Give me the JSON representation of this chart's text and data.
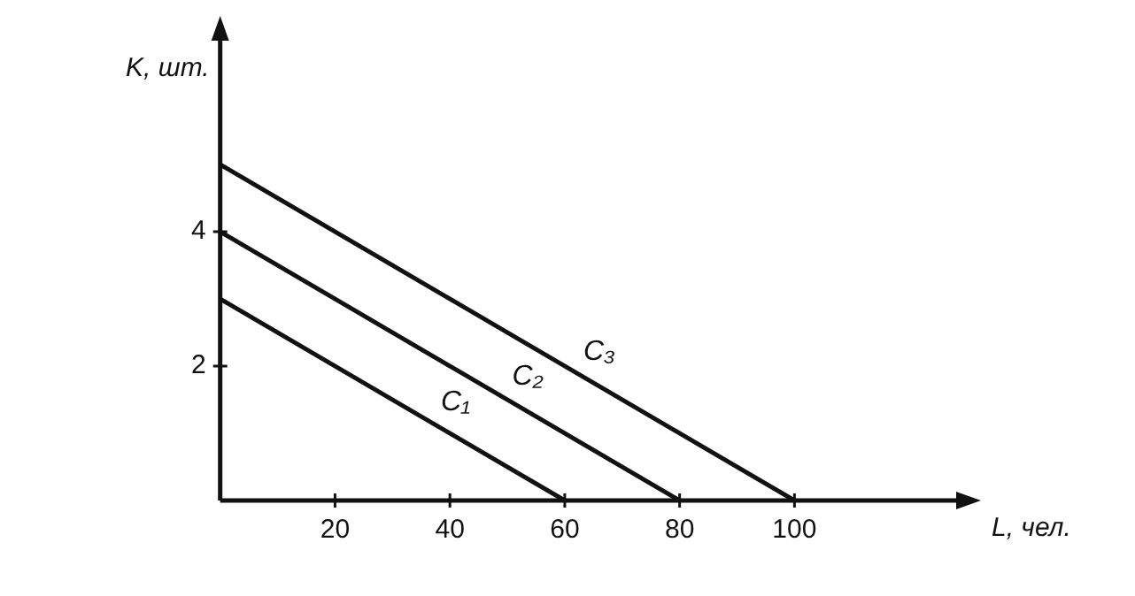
{
  "chart_data": {
    "type": "line",
    "xlabel": "L, чел.",
    "ylabel": "K, шт.",
    "xlim": [
      0,
      130
    ],
    "ylim": [
      0,
      7
    ],
    "xticks": [
      20,
      40,
      60,
      80,
      100
    ],
    "yticks": [
      2,
      4
    ],
    "grid": false,
    "legend": false,
    "marker": "none",
    "line_style": "solid",
    "series": [
      {
        "name": "C₁",
        "color": "#111111",
        "x": [
          0,
          60
        ],
        "values": [
          3,
          0
        ]
      },
      {
        "name": "C₂",
        "color": "#111111",
        "x": [
          0,
          80
        ],
        "values": [
          4,
          0
        ]
      },
      {
        "name": "C₃",
        "color": "#111111",
        "x": [
          0,
          100
        ],
        "values": [
          5,
          0
        ]
      }
    ]
  }
}
